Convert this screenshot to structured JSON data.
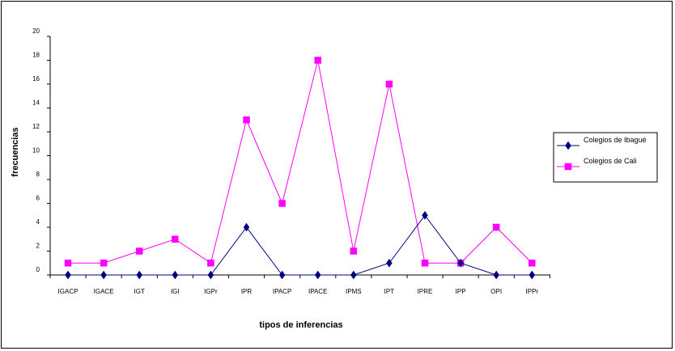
{
  "chart_data": {
    "type": "line",
    "title": "",
    "xlabel": "tipos de inferencias",
    "ylabel": "frecuencias",
    "ylim": [
      0,
      20
    ],
    "yticks": [
      0,
      2,
      4,
      6,
      8,
      10,
      12,
      14,
      16,
      18,
      20
    ],
    "categories": [
      "IGACP",
      "IGACE",
      "IGT",
      "IGI",
      "IGPr",
      "IPR",
      "IPACP",
      "IPACE",
      "IPMS",
      "IPT",
      "IPRE",
      "IPP",
      "OPI",
      "IPPr"
    ],
    "grid": false,
    "legend_position": "right",
    "series": [
      {
        "name": "Colegios de Ibagué",
        "color": "#000080",
        "marker": "diamond",
        "values": [
          0,
          0,
          0,
          0,
          0,
          4,
          0,
          0,
          0,
          1,
          5,
          1,
          0,
          0
        ]
      },
      {
        "name": "Colegios de Cali",
        "color": "#ff00ff",
        "marker": "square",
        "values": [
          1,
          1,
          2,
          3,
          1,
          13,
          6,
          18,
          2,
          16,
          1,
          1,
          4,
          1
        ]
      }
    ]
  }
}
